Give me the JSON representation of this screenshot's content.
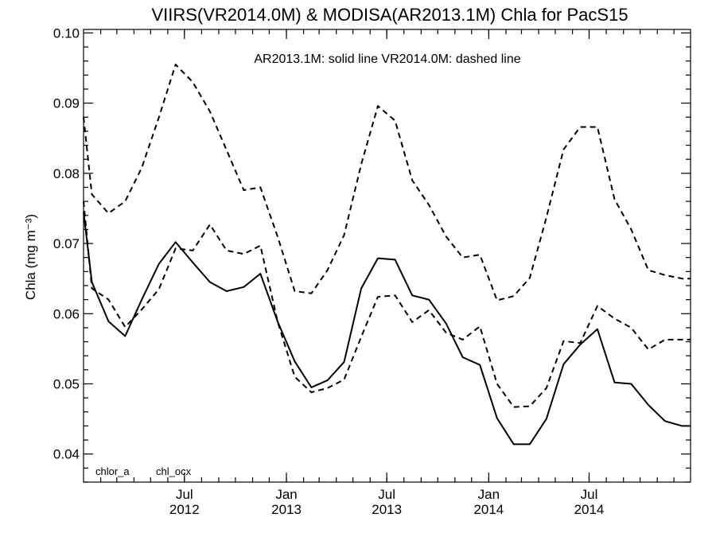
{
  "chart_data": {
    "type": "line",
    "title": "VIIRS(VR2014.0M) & MODISA(AR2013.1M)  Chla for PacS15",
    "note": "AR2013.1M: solid line   VR2014.0M: dashed line",
    "ylabel": "Chla (mg m⁻³)",
    "ylim": [
      0.036,
      0.1005
    ],
    "xlim": [
      "2012-01-01",
      "2014-12-31"
    ],
    "yticks": [
      {
        "value": 0.04,
        "label": "0.04"
      },
      {
        "value": 0.05,
        "label": "0.05"
      },
      {
        "value": 0.06,
        "label": "0.06"
      },
      {
        "value": 0.07,
        "label": "0.07"
      },
      {
        "value": 0.08,
        "label": "0.08"
      },
      {
        "value": 0.09,
        "label": "0.09"
      },
      {
        "value": 0.1,
        "label": "0.10"
      }
    ],
    "xticks": [
      {
        "date": "2012-07-01",
        "month": "Jul",
        "year": "2012"
      },
      {
        "date": "2013-01-01",
        "month": "Jan",
        "year": "2013"
      },
      {
        "date": "2013-07-01",
        "month": "Jul",
        "year": "2013"
      },
      {
        "date": "2014-01-01",
        "month": "Jan",
        "year": "2014"
      },
      {
        "date": "2014-07-01",
        "month": "Jul",
        "year": "2014"
      }
    ],
    "legend": [
      "chlor_a",
      "chl_ocx"
    ],
    "x": [
      "2012-01-01",
      "2012-01-16",
      "2012-02-15",
      "2012-03-16",
      "2012-04-15",
      "2012-05-16",
      "2012-06-15",
      "2012-07-16",
      "2012-08-16",
      "2012-09-15",
      "2012-10-16",
      "2012-11-15",
      "2012-12-16",
      "2013-01-16",
      "2013-02-15",
      "2013-03-16",
      "2013-04-15",
      "2013-05-16",
      "2013-06-15",
      "2013-07-16",
      "2013-08-16",
      "2013-09-15",
      "2013-10-16",
      "2013-11-15",
      "2013-12-16",
      "2014-01-16",
      "2014-02-15",
      "2014-03-16",
      "2014-04-15",
      "2014-05-16",
      "2014-06-15",
      "2014-07-16",
      "2014-08-16",
      "2014-09-15",
      "2014-10-16",
      "2014-11-15",
      "2014-12-16",
      "2014-12-31"
    ],
    "series": [
      {
        "style": "solid",
        "dataset": "AR2013.1M",
        "product": "chlor_a",
        "values": [
          0.0745,
          0.0645,
          0.0589,
          0.0568,
          0.062,
          0.0671,
          0.0702,
          0.0673,
          0.0645,
          0.0632,
          0.0638,
          0.0657,
          0.0589,
          0.0532,
          0.0495,
          0.0505,
          0.0531,
          0.0636,
          0.0679,
          0.0677,
          0.0626,
          0.062,
          0.0586,
          0.0538,
          0.0527,
          0.0451,
          0.0414,
          0.0414,
          0.045,
          0.0528,
          0.0556,
          0.0578,
          0.0502,
          0.05,
          0.047,
          0.0447,
          0.044,
          0.044
        ]
      },
      {
        "style": "dashed",
        "dataset": "VR2014.0M",
        "product": "chlor_a",
        "values": [
          0.088,
          0.077,
          0.0743,
          0.076,
          0.0808,
          0.088,
          0.0955,
          0.093,
          0.0888,
          0.0833,
          0.0776,
          0.078,
          0.071,
          0.0632,
          0.0629,
          0.0662,
          0.0712,
          0.0813,
          0.0896,
          0.0875,
          0.079,
          0.0755,
          0.071,
          0.068,
          0.0684,
          0.0619,
          0.0625,
          0.0651,
          0.0737,
          0.0834,
          0.0866,
          0.0866,
          0.0763,
          0.072,
          0.0662,
          0.0655,
          0.065,
          0.065
        ]
      },
      {
        "style": "dashed",
        "dataset": "VR2014.0M",
        "product": "chl_ocx",
        "values": [
          0.076,
          0.0636,
          0.062,
          0.0581,
          0.0606,
          0.0635,
          0.0693,
          0.069,
          0.0727,
          0.069,
          0.0685,
          0.0697,
          0.0589,
          0.051,
          0.0488,
          0.0494,
          0.0506,
          0.0567,
          0.0624,
          0.0626,
          0.0588,
          0.0605,
          0.0573,
          0.0563,
          0.0582,
          0.05,
          0.0467,
          0.0468,
          0.0494,
          0.0561,
          0.0558,
          0.0611,
          0.0593,
          0.058,
          0.0549,
          0.0563,
          0.0563,
          0.0563
        ]
      }
    ]
  }
}
